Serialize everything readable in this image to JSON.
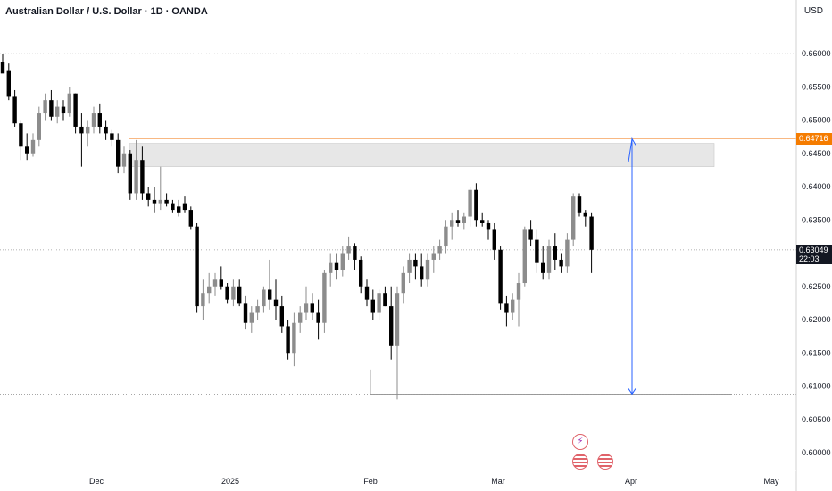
{
  "header": {
    "title": "Australian Dollar / U.S. Dollar · 1D · OANDA",
    "currency": "USD"
  },
  "price_tags": {
    "level_price": "0.64716",
    "last_price": "0.63049",
    "countdown": "22:03"
  },
  "events": [
    {
      "name": "lightning-event-icon",
      "glyph": "⚡"
    },
    {
      "name": "us-flag-event-icon-1",
      "glyph": ""
    },
    {
      "name": "us-flag-event-icon-2",
      "glyph": ""
    }
  ],
  "chart_data": {
    "type": "candlestick",
    "title": "Australian Dollar / U.S. Dollar · 1D · OANDA",
    "y_axis": {
      "ticks": [
        "0.66000",
        "0.65500",
        "0.65000",
        "0.64500",
        "0.64000",
        "0.63500",
        "0.63000",
        "0.62500",
        "0.62000",
        "0.61500",
        "0.61000",
        "0.60500",
        "0.60000"
      ],
      "ylim": [
        0.5975,
        0.668
      ],
      "side": "right"
    },
    "x_axis": {
      "ticks": [
        "Dec",
        "2025",
        "Feb",
        "Mar",
        "Apr",
        "May"
      ]
    },
    "grid": false,
    "colors": {
      "up": "#8c8c8c",
      "down": "#000000",
      "level": "#f57c00",
      "arrow": "#2962ff",
      "zone": "#e0e0e0"
    },
    "annotations": {
      "resistance_zone": [
        0.643,
        0.6465
      ],
      "orange_level": 0.64716,
      "current_level": 0.63049,
      "target_level": 0.6088,
      "arrow_from": 0.6472,
      "arrow_to": 0.6088
    },
    "candles": [
      [
        0.6587,
        0.66,
        0.6575,
        0.657
      ],
      [
        0.6575,
        0.6585,
        0.653,
        0.6535
      ],
      [
        0.6535,
        0.6545,
        0.649,
        0.6495
      ],
      [
        0.6495,
        0.65,
        0.644,
        0.646
      ],
      [
        0.646,
        0.648,
        0.644,
        0.645
      ],
      [
        0.645,
        0.648,
        0.6445,
        0.647
      ],
      [
        0.647,
        0.652,
        0.646,
        0.651
      ],
      [
        0.651,
        0.654,
        0.65,
        0.653
      ],
      [
        0.653,
        0.6545,
        0.65,
        0.6505
      ],
      [
        0.6505,
        0.653,
        0.6495,
        0.652
      ],
      [
        0.652,
        0.653,
        0.65,
        0.651
      ],
      [
        0.651,
        0.655,
        0.6505,
        0.654
      ],
      [
        0.654,
        0.654,
        0.648,
        0.649
      ],
      [
        0.649,
        0.651,
        0.643,
        0.648
      ],
      [
        0.648,
        0.65,
        0.646,
        0.649
      ],
      [
        0.649,
        0.652,
        0.648,
        0.651
      ],
      [
        0.651,
        0.6525,
        0.648,
        0.649
      ],
      [
        0.649,
        0.65,
        0.647,
        0.648
      ],
      [
        0.648,
        0.6485,
        0.646,
        0.647
      ],
      [
        0.647,
        0.648,
        0.642,
        0.643
      ],
      [
        0.643,
        0.646,
        0.642,
        0.645
      ],
      [
        0.645,
        0.6455,
        0.638,
        0.639
      ],
      [
        0.639,
        0.647,
        0.638,
        0.644
      ],
      [
        0.644,
        0.646,
        0.638,
        0.639
      ],
      [
        0.639,
        0.64,
        0.637,
        0.638
      ],
      [
        0.638,
        0.64,
        0.636,
        0.6375
      ],
      [
        0.6375,
        0.643,
        0.6365,
        0.638
      ],
      [
        0.638,
        0.639,
        0.637,
        0.6375
      ],
      [
        0.6375,
        0.638,
        0.636,
        0.6365
      ],
      [
        0.637,
        0.638,
        0.6355,
        0.636
      ],
      [
        0.6375,
        0.6385,
        0.636,
        0.6365
      ],
      [
        0.6365,
        0.637,
        0.6335,
        0.634
      ],
      [
        0.634,
        0.6345,
        0.621,
        0.622
      ],
      [
        0.622,
        0.626,
        0.62,
        0.624
      ],
      [
        0.624,
        0.627,
        0.6225,
        0.625
      ],
      [
        0.625,
        0.627,
        0.6235,
        0.626
      ],
      [
        0.626,
        0.628,
        0.6245,
        0.625
      ],
      [
        0.625,
        0.6255,
        0.6225,
        0.623
      ],
      [
        0.623,
        0.626,
        0.622,
        0.625
      ],
      [
        0.625,
        0.626,
        0.622,
        0.6225
      ],
      [
        0.6225,
        0.6235,
        0.6185,
        0.6195
      ],
      [
        0.6195,
        0.622,
        0.618,
        0.621
      ],
      [
        0.621,
        0.623,
        0.62,
        0.622
      ],
      [
        0.622,
        0.625,
        0.621,
        0.6245
      ],
      [
        0.6245,
        0.629,
        0.6215,
        0.623
      ],
      [
        0.623,
        0.626,
        0.62,
        0.622
      ],
      [
        0.622,
        0.6235,
        0.618,
        0.619
      ],
      [
        0.619,
        0.62,
        0.614,
        0.615
      ],
      [
        0.615,
        0.621,
        0.613,
        0.6195
      ],
      [
        0.6195,
        0.622,
        0.618,
        0.621
      ],
      [
        0.621,
        0.625,
        0.62,
        0.6225
      ],
      [
        0.6225,
        0.624,
        0.62,
        0.621
      ],
      [
        0.621,
        0.623,
        0.617,
        0.6195
      ],
      [
        0.6195,
        0.6275,
        0.618,
        0.627
      ],
      [
        0.627,
        0.63,
        0.625,
        0.6285
      ],
      [
        0.6285,
        0.63,
        0.626,
        0.6275
      ],
      [
        0.6275,
        0.631,
        0.6265,
        0.63
      ],
      [
        0.63,
        0.6325,
        0.629,
        0.631
      ],
      [
        0.631,
        0.6315,
        0.6275,
        0.629
      ],
      [
        0.629,
        0.6295,
        0.624,
        0.625
      ],
      [
        0.625,
        0.626,
        0.622,
        0.623
      ],
      [
        0.623,
        0.6245,
        0.62,
        0.621
      ],
      [
        0.621,
        0.6245,
        0.62,
        0.624
      ],
      [
        0.624,
        0.625,
        0.622,
        0.622
      ],
      [
        0.622,
        0.625,
        0.614,
        0.616
      ],
      [
        0.616,
        0.625,
        0.608,
        0.624
      ],
      [
        0.624,
        0.628,
        0.6225,
        0.627
      ],
      [
        0.627,
        0.63,
        0.6255,
        0.629
      ],
      [
        0.629,
        0.63,
        0.626,
        0.628
      ],
      [
        0.628,
        0.63,
        0.625,
        0.626
      ],
      [
        0.626,
        0.63,
        0.625,
        0.629
      ],
      [
        0.629,
        0.631,
        0.627,
        0.63
      ],
      [
        0.63,
        0.632,
        0.629,
        0.631
      ],
      [
        0.631,
        0.635,
        0.63,
        0.634
      ],
      [
        0.634,
        0.636,
        0.632,
        0.635
      ],
      [
        0.635,
        0.6365,
        0.634,
        0.6345
      ],
      [
        0.6345,
        0.636,
        0.6335,
        0.6355
      ],
      [
        0.6355,
        0.64,
        0.634,
        0.6395
      ],
      [
        0.6395,
        0.6405,
        0.634,
        0.635
      ],
      [
        0.635,
        0.636,
        0.634,
        0.6345
      ],
      [
        0.6345,
        0.635,
        0.632,
        0.6335
      ],
      [
        0.6335,
        0.6345,
        0.629,
        0.6305
      ],
      [
        0.6305,
        0.631,
        0.6215,
        0.6225
      ],
      [
        0.6225,
        0.6235,
        0.619,
        0.621
      ],
      [
        0.621,
        0.624,
        0.62,
        0.623
      ],
      [
        0.623,
        0.627,
        0.619,
        0.6255
      ],
      [
        0.6255,
        0.634,
        0.625,
        0.6335
      ],
      [
        0.6335,
        0.635,
        0.631,
        0.632
      ],
      [
        0.632,
        0.6335,
        0.627,
        0.6285
      ],
      [
        0.6285,
        0.631,
        0.626,
        0.627
      ],
      [
        0.627,
        0.632,
        0.626,
        0.631
      ],
      [
        0.631,
        0.633,
        0.6275,
        0.629
      ],
      [
        0.629,
        0.63,
        0.627,
        0.628
      ],
      [
        0.628,
        0.633,
        0.627,
        0.632
      ],
      [
        0.632,
        0.639,
        0.631,
        0.6385
      ],
      [
        0.6385,
        0.639,
        0.6355,
        0.636
      ],
      [
        0.636,
        0.6365,
        0.634,
        0.6355
      ],
      [
        0.6355,
        0.636,
        0.627,
        0.6305
      ]
    ]
  }
}
